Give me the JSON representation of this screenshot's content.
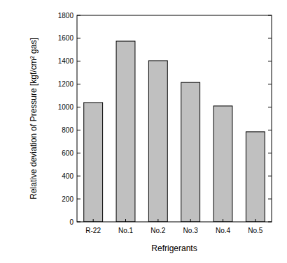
{
  "chart_data": {
    "type": "bar",
    "x_label": "Refrigerants",
    "y_label": "Relative deviation of Pressure [kgf/cm² gas]",
    "categories": [
      "R-22",
      "No.1",
      "No.2",
      "No.3",
      "No.4",
      "No.5"
    ],
    "values": [
      1040,
      1575,
      1405,
      1215,
      1010,
      785
    ],
    "color": "#c0c0c0",
    "ylim": [
      0,
      1800
    ],
    "yticks": [
      0,
      200,
      400,
      600,
      800,
      1000,
      1200,
      1400,
      1600,
      1800
    ],
    "grid": false
  }
}
